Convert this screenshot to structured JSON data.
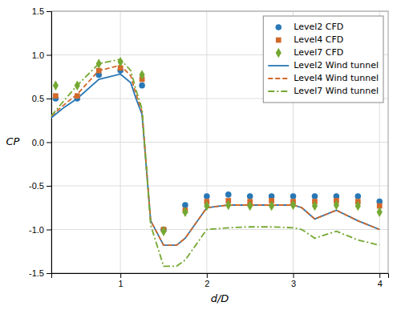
{
  "chart_data": {
    "type": "line",
    "xlabel": "d/D",
    "ylabel": "CP",
    "xlim": [
      0.2,
      4.1
    ],
    "ylim": [
      -1.5,
      1.5
    ],
    "xticks": [
      1,
      2,
      3,
      4
    ],
    "yticks": [
      -1.5,
      {
        "value": -1.0,
        "label": "-1.0"
      },
      -0.5,
      {
        "value": 0,
        "label": "0.0"
      },
      0.5,
      {
        "value": 1.0,
        "label": "1.0"
      },
      1.5
    ],
    "grid": true,
    "legend": "upper right",
    "series": [
      {
        "name": "Level2 CFD",
        "type": "scatter",
        "marker": "circle",
        "color": "#2878b5",
        "x": [
          0.25,
          0.5,
          0.75,
          1.0,
          1.25,
          1.5,
          1.75,
          2.0,
          2.25,
          2.5,
          2.75,
          3.0,
          3.25,
          3.5,
          3.75,
          4.0
        ],
        "values": [
          0.5,
          0.5,
          0.77,
          0.82,
          0.65,
          -1.0,
          -0.72,
          -0.62,
          -0.6,
          -0.62,
          -0.62,
          -0.62,
          -0.62,
          -0.62,
          -0.62,
          -0.68
        ]
      },
      {
        "name": "Level4 CFD",
        "type": "scatter",
        "marker": "square",
        "color": "#d2692a",
        "x": [
          0.25,
          0.5,
          0.75,
          1.0,
          1.25,
          1.5,
          1.75,
          2.0,
          2.25,
          2.5,
          2.75,
          3.0,
          3.25,
          3.5,
          3.75,
          4.0
        ],
        "values": [
          0.53,
          0.53,
          0.82,
          0.85,
          0.72,
          -1.0,
          -0.78,
          -0.68,
          -0.67,
          -0.68,
          -0.67,
          -0.68,
          -0.68,
          -0.67,
          -0.68,
          -0.73
        ]
      },
      {
        "name": "Level7 CFD",
        "type": "scatter",
        "marker": "diamond",
        "color": "#75a832",
        "x": [
          0.25,
          0.5,
          0.75,
          1.0,
          1.25,
          1.5,
          1.75,
          2.0,
          2.25,
          2.5,
          2.75,
          3.0,
          3.25,
          3.5,
          3.75,
          4.0
        ],
        "values": [
          0.65,
          0.65,
          0.9,
          0.92,
          0.77,
          -1.02,
          -0.8,
          -0.73,
          -0.72,
          -0.73,
          -0.73,
          -0.72,
          -0.73,
          -0.72,
          -0.73,
          -0.8
        ]
      },
      {
        "name": "Level2 Wind tunnel",
        "type": "line",
        "line_style": "solid",
        "color": "#2878b5",
        "x": [
          0.2,
          0.35,
          0.5,
          0.75,
          1.0,
          1.12,
          1.18,
          1.25,
          1.35,
          1.5,
          1.65,
          1.75,
          2.0,
          2.25,
          2.5,
          2.75,
          3.0,
          3.1,
          3.25,
          3.5,
          3.75,
          4.0
        ],
        "values": [
          0.28,
          0.4,
          0.5,
          0.72,
          0.78,
          0.68,
          0.5,
          0.32,
          -0.9,
          -1.18,
          -1.18,
          -1.1,
          -0.75,
          -0.72,
          -0.72,
          -0.72,
          -0.72,
          -0.75,
          -0.88,
          -0.78,
          -0.9,
          -1.0
        ]
      },
      {
        "name": "Level4 Wind tunnel",
        "type": "line",
        "line_style": "dashed",
        "color": "#d2692a",
        "x": [
          0.2,
          0.35,
          0.5,
          0.75,
          1.0,
          1.12,
          1.18,
          1.25,
          1.35,
          1.5,
          1.65,
          1.75,
          2.0,
          2.25,
          2.5,
          2.75,
          3.0,
          3.1,
          3.25,
          3.5,
          3.75,
          4.0
        ],
        "values": [
          0.3,
          0.43,
          0.55,
          0.82,
          0.88,
          0.76,
          0.55,
          0.35,
          -0.9,
          -1.18,
          -1.18,
          -1.1,
          -0.75,
          -0.72,
          -0.72,
          -0.72,
          -0.72,
          -0.75,
          -0.88,
          -0.78,
          -0.9,
          -1.0
        ]
      },
      {
        "name": "Level7 Wind tunnel",
        "type": "line",
        "line_style": "dashdot",
        "color": "#75a832",
        "x": [
          0.2,
          0.35,
          0.5,
          0.75,
          1.0,
          1.12,
          1.18,
          1.25,
          1.35,
          1.5,
          1.65,
          1.75,
          2.0,
          2.25,
          2.5,
          2.75,
          3.0,
          3.1,
          3.25,
          3.5,
          3.75,
          4.0
        ],
        "values": [
          0.3,
          0.48,
          0.65,
          0.9,
          0.95,
          0.82,
          0.6,
          0.38,
          -0.95,
          -1.42,
          -1.42,
          -1.35,
          -1.0,
          -0.98,
          -0.97,
          -0.97,
          -0.98,
          -1.0,
          -1.1,
          -1.02,
          -1.12,
          -1.18
        ]
      }
    ]
  }
}
